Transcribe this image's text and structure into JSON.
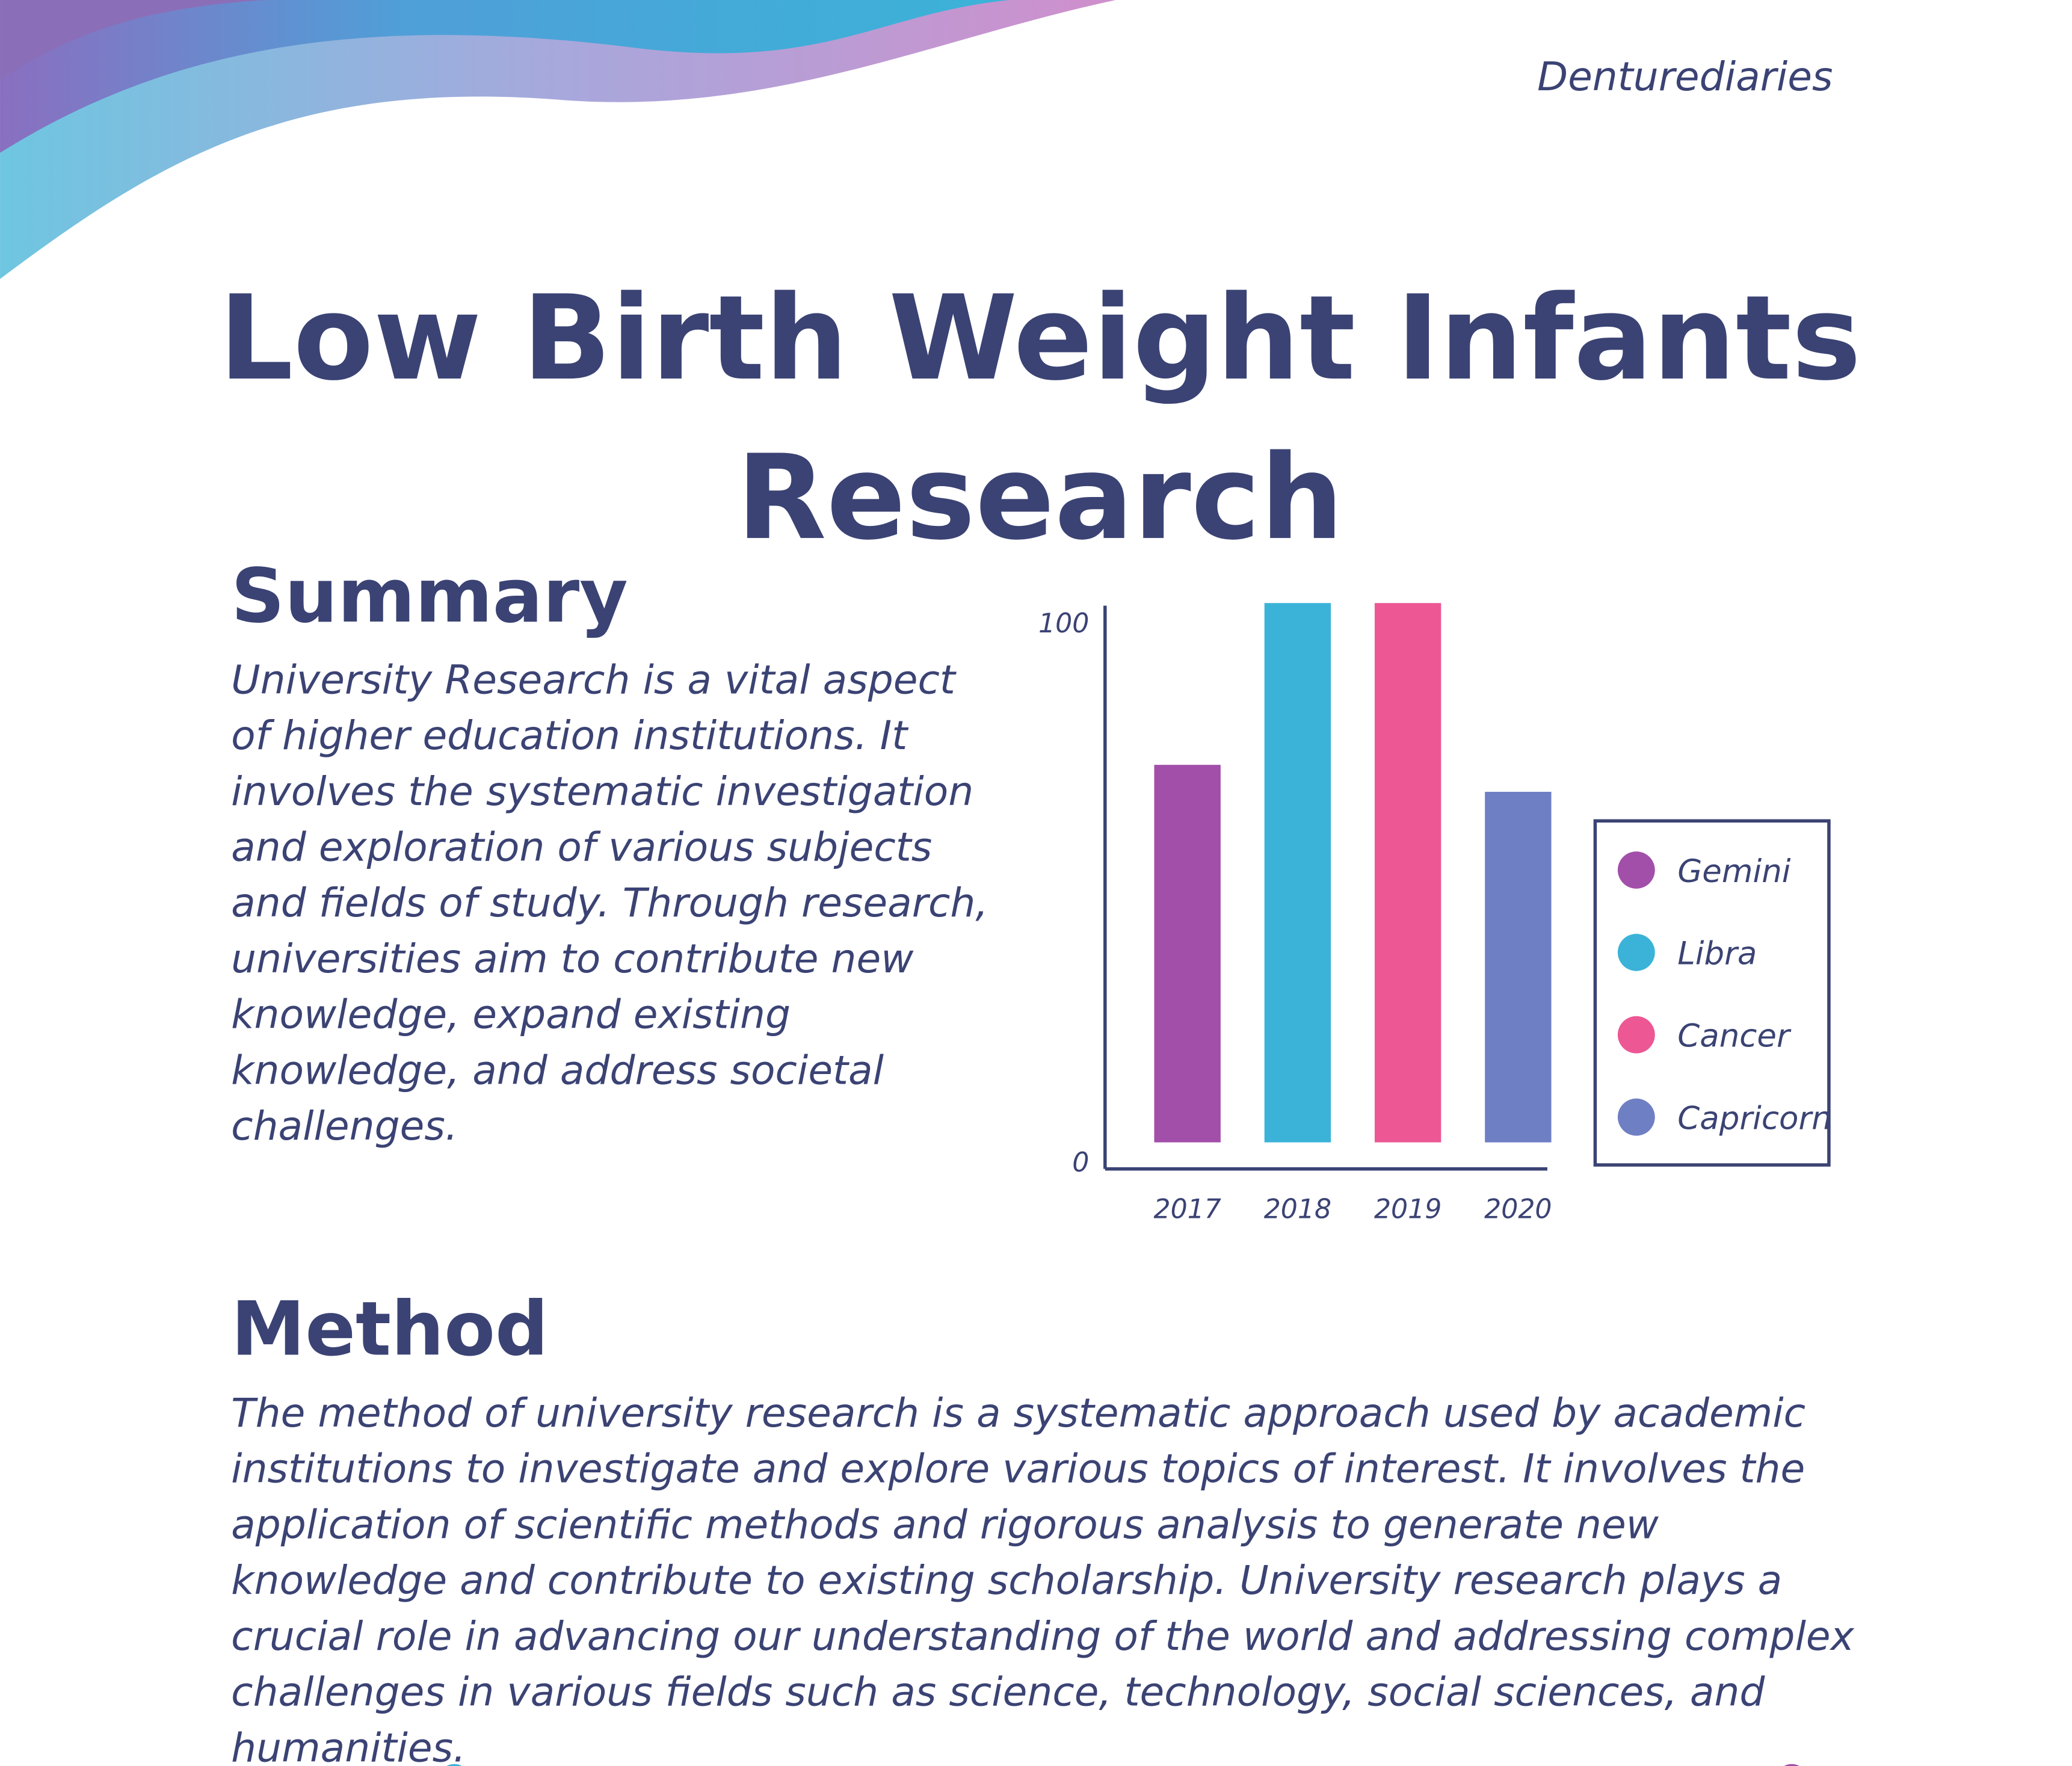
{
  "header": {
    "brand": "Denturediaries"
  },
  "title": {
    "lines": [
      "Low Birth Weight Infants",
      "Research"
    ]
  },
  "summary": {
    "heading": "Summary",
    "lines": [
      "University Research is a vital aspect",
      "of higher education institutions. It",
      "involves the systematic investigation",
      "and exploration of various subjects",
      "and fields of study. Through research,",
      "universities aim to contribute new",
      "knowledge, expand existing",
      "knowledge, and address societal",
      "challenges."
    ]
  },
  "chart_data": {
    "type": "bar",
    "categories": [
      "2017",
      "2018",
      "2019",
      "2020"
    ],
    "values": [
      70,
      100,
      100,
      65
    ],
    "colors": [
      "#a24faa",
      "#3bb3d8",
      "#ec5794",
      "#6f7fc4"
    ],
    "legend": [
      "Gemini",
      "Libra",
      "Cancer",
      "Capricorn"
    ],
    "ylim": [
      0,
      100
    ],
    "yticks": [
      0,
      100
    ]
  },
  "method": {
    "heading": "Method",
    "lines": [
      "The method of university research is a systematic approach used by academic",
      "institutions to investigate and explore various topics of interest. It involves the",
      "application of scientific methods and rigorous analysis to generate new",
      "knowledge and contribute to existing scholarship. University research plays a",
      "crucial role in advancing our understanding of the world and addressing complex",
      "challenges in various fields such as science, technology, social sciences, and",
      "humanities."
    ]
  }
}
